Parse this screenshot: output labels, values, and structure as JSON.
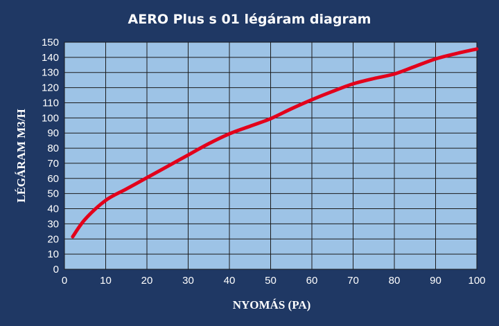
{
  "chart_data": {
    "type": "line",
    "title": "AERO Plus s 01 légáram diagram",
    "xlabel": "NYOMÁS (PA)",
    "ylabel": "LÉGÁRAM M3/H",
    "xlim": [
      0,
      100
    ],
    "ylim": [
      0,
      150
    ],
    "x_ticks": [
      "0",
      "10",
      "20",
      "30",
      "40",
      "50",
      "60",
      "70",
      "80",
      "90",
      "100"
    ],
    "y_ticks": [
      "0",
      "10",
      "20",
      "30",
      "40",
      "50",
      "60",
      "70",
      "80",
      "90",
      "100",
      "110",
      "120",
      "130",
      "140",
      "150"
    ],
    "grid": true,
    "legend": "none",
    "series": [
      {
        "x": [
          2,
          5,
          10,
          15,
          20,
          25,
          30,
          35,
          40,
          45,
          50,
          55,
          60,
          65,
          70,
          75,
          80,
          85,
          90,
          95,
          100
        ],
        "y": [
          21.5,
          33,
          45.5,
          53,
          60.5,
          68,
          75.5,
          83,
          89.5,
          94.5,
          99.5,
          106,
          112,
          117.5,
          122.5,
          126,
          129,
          134,
          139,
          142.5,
          145.5
        ]
      }
    ],
    "colors": {
      "background": "#1f3864",
      "plot_area": "#9dc3e6",
      "grid": "#1a1a1a",
      "line": "#e3001b"
    }
  }
}
